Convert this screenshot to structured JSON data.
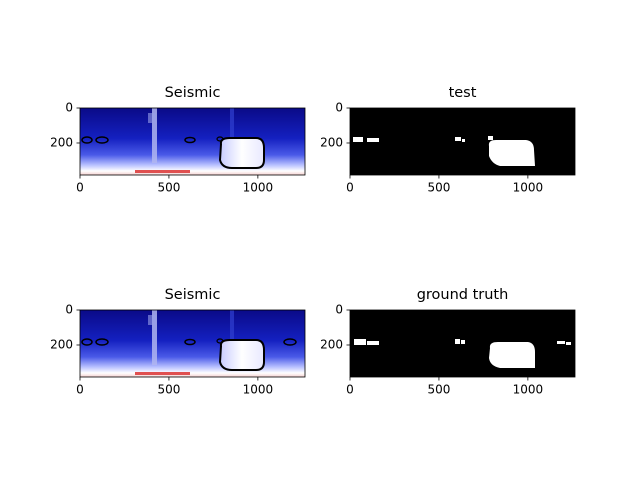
{
  "chart_data": [
    {
      "type": "image",
      "title": "Seismic",
      "xlim": [
        0,
        1265
      ],
      "ylim": [
        383,
        0
      ],
      "xticks": [
        0,
        500,
        1000
      ],
      "yticks": [
        0,
        200
      ]
    },
    {
      "type": "image",
      "title": "test",
      "xlim": [
        0,
        1265
      ],
      "ylim": [
        383,
        0
      ],
      "xticks": [
        0,
        500,
        1000
      ],
      "yticks": [
        0,
        200
      ]
    },
    {
      "type": "image",
      "title": "Seismic",
      "xlim": [
        0,
        1265
      ],
      "ylim": [
        383,
        0
      ],
      "xticks": [
        0,
        500,
        1000
      ],
      "yticks": [
        0,
        200
      ]
    },
    {
      "type": "image",
      "title": "ground truth",
      "xlim": [
        0,
        1265
      ],
      "ylim": [
        383,
        0
      ],
      "xticks": [
        0,
        500,
        1000
      ],
      "yticks": [
        0,
        200
      ]
    }
  ]
}
